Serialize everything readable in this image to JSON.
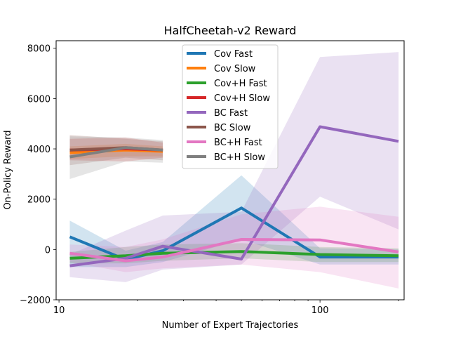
{
  "chart_data": {
    "type": "line",
    "title": "HalfCheetah-v2 Reward",
    "xlabel": "Number of Expert Trajectories",
    "ylabel": "On-Policy Reward",
    "xscale": "log",
    "xlim": [
      9.75,
      210
    ],
    "ylim": [
      -2000,
      8300
    ],
    "xticks": [
      10,
      100
    ],
    "xtick_labels": [
      "10",
      "100"
    ],
    "yticks": [
      -2000,
      0,
      2000,
      4000,
      6000,
      8000
    ],
    "ytick_labels": [
      "−2000",
      "0",
      "2000",
      "4000",
      "6000",
      "8000"
    ],
    "grid": false,
    "legend_position": "top-center",
    "series": [
      {
        "name": "Cov Fast",
        "color": "#1f77b4",
        "x": [
          11,
          18,
          25,
          50,
          100,
          200
        ],
        "y": [
          500,
          -400,
          -50,
          1650,
          -300,
          -300
        ],
        "lower": [
          -700,
          -700,
          -500,
          400,
          -600,
          -600
        ],
        "upper": [
          1150,
          -50,
          300,
          2950,
          50,
          0
        ]
      },
      {
        "name": "Cov Slow",
        "color": "#ff7f0e",
        "x": [
          11,
          18,
          25
        ],
        "y": [
          3850,
          3950,
          3900
        ],
        "lower": [
          3600,
          3700,
          3700
        ],
        "upper": [
          4100,
          4200,
          4100
        ]
      },
      {
        "name": "Cov+H Fast",
        "color": "#2ca02c",
        "x": [
          11,
          18,
          25,
          50,
          100,
          200
        ],
        "y": [
          -350,
          -250,
          -150,
          -80,
          -200,
          -250
        ],
        "lower": [
          -550,
          -550,
          -450,
          -350,
          -500,
          -500
        ],
        "upper": [
          -100,
          100,
          200,
          250,
          100,
          50
        ]
      },
      {
        "name": "Cov+H Slow",
        "color": "#d62728",
        "x": [
          11,
          18,
          25
        ],
        "y": [
          3950,
          4000,
          3950
        ],
        "lower": [
          3550,
          3500,
          3650
        ],
        "upper": [
          4400,
          4450,
          4250
        ]
      },
      {
        "name": "BC Fast",
        "color": "#9467bd",
        "x": [
          11,
          18,
          25,
          50,
          100,
          200
        ],
        "y": [
          -650,
          -350,
          130,
          -380,
          4880,
          4300
        ],
        "lower": [
          -1100,
          -1300,
          -800,
          -600,
          2100,
          800
        ],
        "upper": [
          -200,
          750,
          1350,
          1500,
          7650,
          7850
        ]
      },
      {
        "name": "BC Slow",
        "color": "#8c564b",
        "x": [
          11,
          18,
          25
        ],
        "y": [
          3950,
          4050,
          3950
        ],
        "lower": [
          3350,
          3650,
          3550
        ],
        "upper": [
          4550,
          4400,
          4300
        ]
      },
      {
        "name": "BC+H Fast",
        "color": "#e377c2",
        "x": [
          11,
          18,
          25,
          50,
          100,
          200
        ],
        "y": [
          -150,
          -450,
          -300,
          400,
          380,
          -100
        ],
        "lower": [
          -500,
          -900,
          -750,
          -600,
          -900,
          -1550
        ],
        "upper": [
          200,
          100,
          400,
          1400,
          1700,
          1300
        ]
      },
      {
        "name": "BC+H Slow",
        "color": "#7f7f7f",
        "x": [
          11,
          18,
          25
        ],
        "y": [
          3680,
          4050,
          3950
        ],
        "lower": [
          2800,
          3500,
          3450
        ],
        "upper": [
          4500,
          4450,
          4350
        ]
      }
    ]
  }
}
